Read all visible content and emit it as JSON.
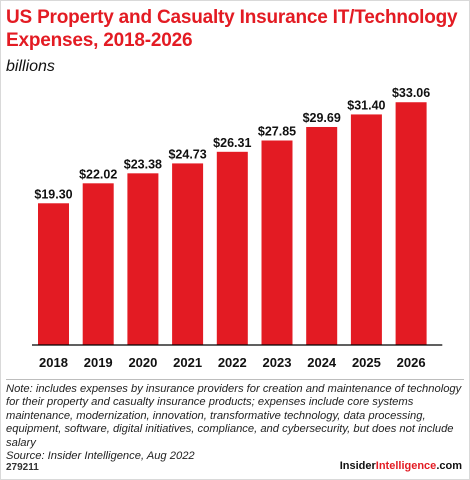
{
  "header": {
    "title": "US Property and Casualty Insurance IT/Technology Expenses, 2018-2026",
    "subtitle": "billions"
  },
  "chart_data": {
    "type": "bar",
    "categories": [
      "2018",
      "2019",
      "2020",
      "2021",
      "2022",
      "2023",
      "2024",
      "2025",
      "2026"
    ],
    "values": [
      19.3,
      22.02,
      23.38,
      24.73,
      26.31,
      27.85,
      29.69,
      31.4,
      33.06
    ],
    "value_labels": [
      "$19.30",
      "$22.02",
      "$23.38",
      "$24.73",
      "$26.31",
      "$27.85",
      "$29.69",
      "$31.40",
      "$33.06"
    ],
    "ylim": [
      0,
      35
    ],
    "bar_color": "#e31b23",
    "grid": false
  },
  "footer": {
    "note": "Note: includes expenses by insurance providers for creation and maintenance of technology for their property and casualty insurance products; expenses include core systems maintenance, modernization, innovation, transformative technology, data processing, equipment, software, digital initiatives, compliance, and cybersecurity, but does not include salary",
    "source": "Source: Insider Intelligence, Aug 2022",
    "chart_id": "279211",
    "brand_main": "Insider",
    "brand_accent": "Intelligence",
    "brand_suffix": ".com"
  }
}
